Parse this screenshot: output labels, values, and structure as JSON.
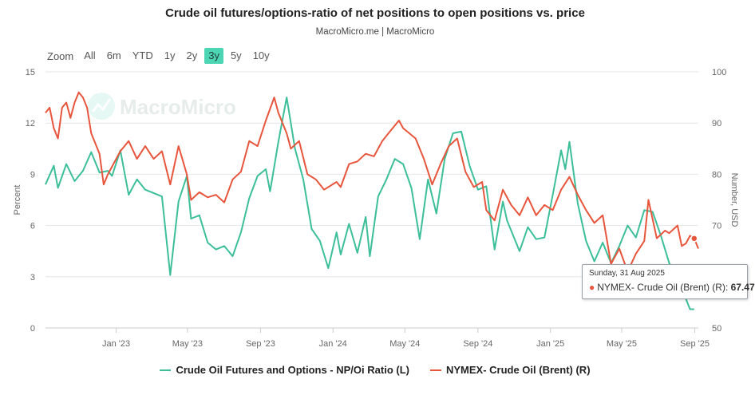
{
  "header": {
    "title": "Crude oil futures/options-ratio of net positions to open positions vs. price",
    "subtitle": "MacroMicro.me | MacroMicro"
  },
  "zoom": {
    "label": "Zoom",
    "options": [
      "All",
      "6m",
      "YTD",
      "1y",
      "2y",
      "3y",
      "5y",
      "10y"
    ],
    "active": "3y"
  },
  "watermark": "MacroMicro",
  "tooltip": {
    "date": "Sunday, 31 Aug 2025",
    "series": "NYMEX- Crude Oil (Brent) (R):",
    "value": "67.47"
  },
  "colors": {
    "ratio": "#3cbf99",
    "brent": "#e8553d",
    "active_zoom": "#4dd6b4"
  },
  "chart_data": {
    "type": "line",
    "title": "Crude oil futures/options-ratio of net positions to open positions vs. price",
    "x_tick_labels": [
      "Jan '23",
      "May '23",
      "Sep '23",
      "Jan '24",
      "May '24",
      "Sep '24",
      "Jan '25",
      "May '25",
      "Sep '25"
    ],
    "x_range": [
      "2022-09-04",
      "2025-09-07"
    ],
    "y_left": {
      "label": "Percent",
      "range": [
        0,
        15
      ],
      "ticks": [
        0,
        3,
        6,
        9,
        12,
        15
      ]
    },
    "y_right": {
      "label": "Number, USD",
      "range": [
        50,
        100
      ],
      "ticks": [
        50,
        60,
        70,
        80,
        90,
        100
      ]
    },
    "grid": "horizontal",
    "legend_position": "bottom",
    "series": [
      {
        "name": "Crude Oil Futures and Options - NP/Oi Ratio (L)",
        "axis": "left",
        "points": [
          [
            "2022-09-04",
            8.4
          ],
          [
            "2022-09-18",
            9.5
          ],
          [
            "2022-09-25",
            8.2
          ],
          [
            "2022-10-09",
            9.6
          ],
          [
            "2022-10-23",
            8.6
          ],
          [
            "2022-11-06",
            9.2
          ],
          [
            "2022-11-20",
            10.3
          ],
          [
            "2022-12-04",
            9.1
          ],
          [
            "2022-12-18",
            9.2
          ],
          [
            "2022-12-25",
            8.9
          ],
          [
            "2023-01-08",
            10.4
          ],
          [
            "2023-01-22",
            7.8
          ],
          [
            "2023-02-05",
            8.7
          ],
          [
            "2023-02-19",
            8.1
          ],
          [
            "2023-03-05",
            7.9
          ],
          [
            "2023-03-19",
            7.7
          ],
          [
            "2023-04-02",
            3.1
          ],
          [
            "2023-04-16",
            7.4
          ],
          [
            "2023-04-30",
            8.9
          ],
          [
            "2023-05-07",
            6.4
          ],
          [
            "2023-05-21",
            6.6
          ],
          [
            "2023-06-04",
            5.0
          ],
          [
            "2023-06-18",
            4.6
          ],
          [
            "2023-07-02",
            4.8
          ],
          [
            "2023-07-16",
            4.2
          ],
          [
            "2023-07-30",
            5.6
          ],
          [
            "2023-08-13",
            7.6
          ],
          [
            "2023-08-27",
            8.9
          ],
          [
            "2023-09-10",
            9.3
          ],
          [
            "2023-09-17",
            8.0
          ],
          [
            "2023-10-01",
            10.9
          ],
          [
            "2023-10-15",
            13.5
          ],
          [
            "2023-10-29",
            10.5
          ],
          [
            "2023-11-12",
            8.7
          ],
          [
            "2023-11-26",
            5.8
          ],
          [
            "2023-12-10",
            5.1
          ],
          [
            "2023-12-24",
            3.5
          ],
          [
            "2024-01-07",
            5.6
          ],
          [
            "2024-01-14",
            4.3
          ],
          [
            "2024-01-28",
            6.1
          ],
          [
            "2024-02-11",
            4.4
          ],
          [
            "2024-02-25",
            6.5
          ],
          [
            "2024-03-03",
            4.2
          ],
          [
            "2024-03-17",
            7.7
          ],
          [
            "2024-03-31",
            8.7
          ],
          [
            "2024-04-14",
            9.9
          ],
          [
            "2024-04-28",
            9.6
          ],
          [
            "2024-05-12",
            8.2
          ],
          [
            "2024-05-26",
            5.2
          ],
          [
            "2024-06-09",
            8.7
          ],
          [
            "2024-06-23",
            6.7
          ],
          [
            "2024-07-07",
            9.9
          ],
          [
            "2024-07-21",
            11.4
          ],
          [
            "2024-08-04",
            11.5
          ],
          [
            "2024-08-18",
            9.5
          ],
          [
            "2024-09-01",
            8.1
          ],
          [
            "2024-09-15",
            8.3
          ],
          [
            "2024-09-29",
            4.6
          ],
          [
            "2024-10-13",
            7.4
          ],
          [
            "2024-10-20",
            6.3
          ],
          [
            "2024-11-10",
            4.5
          ],
          [
            "2024-11-24",
            5.9
          ],
          [
            "2024-12-08",
            5.2
          ],
          [
            "2024-12-22",
            5.3
          ],
          [
            "2025-01-05",
            7.8
          ],
          [
            "2025-01-19",
            10.4
          ],
          [
            "2025-01-26",
            9.3
          ],
          [
            "2025-02-02",
            10.9
          ],
          [
            "2025-02-16",
            7.3
          ],
          [
            "2025-03-02",
            5.1
          ],
          [
            "2025-03-16",
            3.9
          ],
          [
            "2025-03-30",
            5.0
          ],
          [
            "2025-04-13",
            3.8
          ],
          [
            "2025-04-27",
            4.8
          ],
          [
            "2025-05-11",
            6.0
          ],
          [
            "2025-05-25",
            5.3
          ],
          [
            "2025-06-08",
            6.9
          ],
          [
            "2025-06-22",
            6.8
          ],
          [
            "2025-07-06",
            5.4
          ],
          [
            "2025-07-20",
            3.8
          ],
          [
            "2025-08-03",
            3.0
          ],
          [
            "2025-08-17",
            1.7
          ],
          [
            "2025-08-24",
            1.1
          ],
          [
            "2025-08-31",
            1.1
          ]
        ]
      },
      {
        "name": "NYMEX- Crude Oil (Brent) (R)",
        "axis": "right",
        "points": [
          [
            "2022-09-04",
            92.0
          ],
          [
            "2022-09-11",
            93.0
          ],
          [
            "2022-09-18",
            89.0
          ],
          [
            "2022-09-25",
            87.0
          ],
          [
            "2022-10-02",
            93.0
          ],
          [
            "2022-10-09",
            94.0
          ],
          [
            "2022-10-16",
            91.0
          ],
          [
            "2022-10-23",
            94.0
          ],
          [
            "2022-10-30",
            96.0
          ],
          [
            "2022-11-06",
            95.0
          ],
          [
            "2022-11-13",
            93.0
          ],
          [
            "2022-11-20",
            88.0
          ],
          [
            "2022-12-04",
            84.0
          ],
          [
            "2022-12-11",
            78.0
          ],
          [
            "2022-12-18",
            80.0
          ],
          [
            "2023-01-08",
            84.5
          ],
          [
            "2023-01-22",
            86.5
          ],
          [
            "2023-02-05",
            83.0
          ],
          [
            "2023-02-19",
            85.5
          ],
          [
            "2023-03-05",
            83.0
          ],
          [
            "2023-03-19",
            84.5
          ],
          [
            "2023-04-02",
            78.0
          ],
          [
            "2023-04-16",
            85.5
          ],
          [
            "2023-04-30",
            80.0
          ],
          [
            "2023-05-07",
            75.0
          ],
          [
            "2023-05-21",
            76.5
          ],
          [
            "2023-06-04",
            75.5
          ],
          [
            "2023-06-18",
            76.0
          ],
          [
            "2023-07-02",
            74.5
          ],
          [
            "2023-07-16",
            79.0
          ],
          [
            "2023-07-30",
            80.5
          ],
          [
            "2023-08-13",
            86.5
          ],
          [
            "2023-08-27",
            85.5
          ],
          [
            "2023-09-10",
            90.5
          ],
          [
            "2023-09-24",
            95.0
          ],
          [
            "2023-10-01",
            92.0
          ],
          [
            "2023-10-15",
            88.0
          ],
          [
            "2023-10-22",
            85.0
          ],
          [
            "2023-11-05",
            86.5
          ],
          [
            "2023-11-19",
            80.0
          ],
          [
            "2023-12-03",
            79.0
          ],
          [
            "2023-12-17",
            77.0
          ],
          [
            "2024-01-07",
            78.5
          ],
          [
            "2024-01-14",
            77.5
          ],
          [
            "2024-01-28",
            82.0
          ],
          [
            "2024-02-11",
            82.5
          ],
          [
            "2024-02-25",
            84.0
          ],
          [
            "2024-03-10",
            83.5
          ],
          [
            "2024-03-24",
            86.5
          ],
          [
            "2024-04-07",
            88.5
          ],
          [
            "2024-04-21",
            90.5
          ],
          [
            "2024-04-28",
            89.0
          ],
          [
            "2024-05-19",
            87.0
          ],
          [
            "2024-06-02",
            83.0
          ],
          [
            "2024-06-16",
            78.0
          ],
          [
            "2024-06-30",
            82.0
          ],
          [
            "2024-07-14",
            85.5
          ],
          [
            "2024-07-28",
            87.0
          ],
          [
            "2024-08-11",
            80.5
          ],
          [
            "2024-08-25",
            77.5
          ],
          [
            "2024-09-08",
            78.5
          ],
          [
            "2024-09-15",
            73.0
          ],
          [
            "2024-09-29",
            71.0
          ],
          [
            "2024-10-13",
            77.0
          ],
          [
            "2024-10-27",
            74.0
          ],
          [
            "2024-11-10",
            72.0
          ],
          [
            "2024-11-24",
            75.5
          ],
          [
            "2024-12-08",
            72.0
          ],
          [
            "2024-12-22",
            74.0
          ],
          [
            "2025-01-05",
            73.0
          ],
          [
            "2025-01-19",
            77.0
          ],
          [
            "2025-02-02",
            79.5
          ],
          [
            "2025-02-16",
            76.0
          ],
          [
            "2025-03-02",
            73.0
          ],
          [
            "2025-03-16",
            70.5
          ],
          [
            "2025-03-30",
            72.0
          ],
          [
            "2025-04-13",
            62.5
          ],
          [
            "2025-04-27",
            65.5
          ],
          [
            "2025-05-11",
            61.0
          ],
          [
            "2025-05-25",
            64.5
          ],
          [
            "2025-06-08",
            67.0
          ],
          [
            "2025-06-15",
            75.0
          ],
          [
            "2025-06-29",
            67.5
          ],
          [
            "2025-07-13",
            69.0
          ],
          [
            "2025-07-20",
            68.5
          ],
          [
            "2025-08-03",
            70.0
          ],
          [
            "2025-08-10",
            66.0
          ],
          [
            "2025-08-17",
            66.5
          ],
          [
            "2025-08-24",
            68.0
          ],
          [
            "2025-08-31",
            67.47
          ],
          [
            "2025-09-07",
            65.5
          ]
        ]
      }
    ],
    "tooltip_point": {
      "series": "NYMEX- Crude Oil (Brent) (R)",
      "date": "2025-08-31",
      "value": 67.47
    }
  }
}
